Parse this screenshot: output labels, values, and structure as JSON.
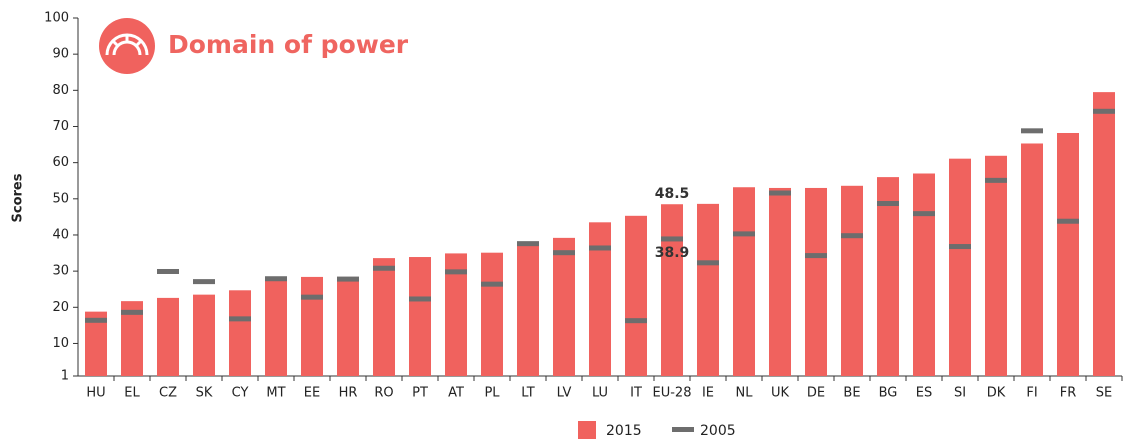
{
  "chart_data": {
    "type": "bar",
    "title": "Domain of power",
    "y_label": "Scores",
    "categories": [
      "HU",
      "EL",
      "CZ",
      "SK",
      "CY",
      "MT",
      "EE",
      "HR",
      "RO",
      "PT",
      "AT",
      "PL",
      "LT",
      "LV",
      "LU",
      "IT",
      "EU-28",
      "IE",
      "NL",
      "UK",
      "DE",
      "BE",
      "BG",
      "ES",
      "SI",
      "DK",
      "FI",
      "FR",
      "SE"
    ],
    "series": [
      {
        "name": "2015",
        "color": "#f0625e",
        "mark": "bar",
        "values": [
          18.8,
          21.7,
          22.6,
          23.5,
          24.7,
          27.4,
          28.4,
          28.4,
          33.6,
          33.9,
          34.9,
          35.1,
          37.2,
          39.2,
          43.5,
          45.3,
          48.5,
          48.6,
          53.2,
          53.0,
          53.0,
          53.6,
          56.0,
          57.0,
          61.1,
          61.9,
          65.3,
          68.2,
          79.5
        ],
        "value_labels": [
          null,
          null,
          null,
          null,
          null,
          null,
          null,
          null,
          null,
          null,
          null,
          null,
          null,
          null,
          null,
          null,
          "48.5",
          null,
          null,
          null,
          null,
          null,
          null,
          null,
          null,
          null,
          null,
          null,
          null
        ]
      },
      {
        "name": "2005",
        "color": "#6d6d6d",
        "mark": "dash",
        "values": [
          16.4,
          18.6,
          29.9,
          27.1,
          16.8,
          27.9,
          22.8,
          27.8,
          30.8,
          22.3,
          29.8,
          26.4,
          37.6,
          35.1,
          36.4,
          16.3,
          38.9,
          32.3,
          40.3,
          51.6,
          34.3,
          39.8,
          48.7,
          45.9,
          36.8,
          55.1,
          68.8,
          43.8,
          74.2
        ],
        "value_labels": [
          null,
          null,
          null,
          null,
          null,
          null,
          null,
          null,
          null,
          null,
          null,
          null,
          null,
          null,
          null,
          null,
          "38.9",
          null,
          null,
          null,
          null,
          null,
          null,
          null,
          null,
          null,
          null,
          null,
          null
        ]
      }
    ],
    "ylim": [
      1,
      100
    ],
    "yticks": [
      1,
      10,
      20,
      30,
      40,
      50,
      60,
      70,
      80,
      90,
      100
    ]
  }
}
